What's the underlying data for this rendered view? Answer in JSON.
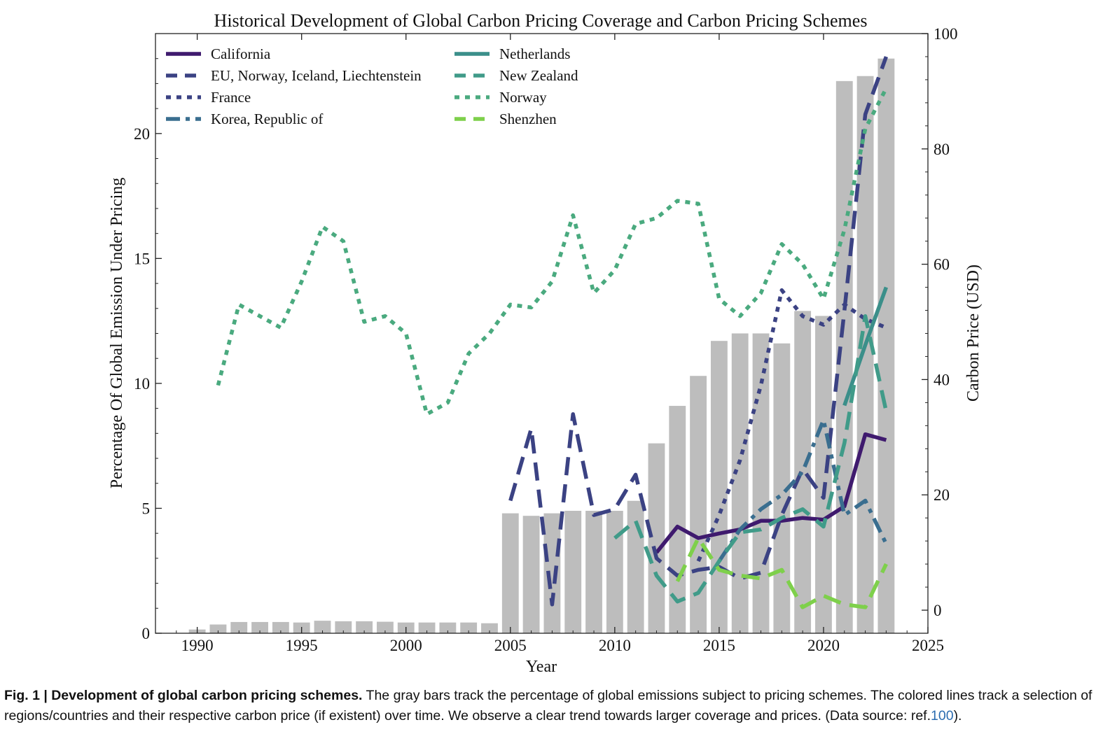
{
  "chart_data": {
    "type": "bar+line",
    "title": "Historical Development of Global Carbon Pricing Coverage and Carbon Pricing Schemes",
    "xlabel": "Year",
    "ylabel_left": "Percentage Of Global Emission Under Pricing",
    "ylabel_right": "Carbon Price (USD)",
    "xlim": [
      1988,
      2025
    ],
    "ylim_left": [
      0,
      24
    ],
    "ylim_right": [
      -4,
      100
    ],
    "x_ticks": [
      1990,
      1995,
      2000,
      2005,
      2010,
      2015,
      2020,
      2025
    ],
    "y_ticks_left": [
      0,
      5,
      10,
      15,
      20
    ],
    "y_ticks_right": [
      0,
      20,
      40,
      60,
      80,
      100
    ],
    "bars": {
      "axis": "left",
      "color": "#bdbdbd",
      "years": [
        1990,
        1991,
        1992,
        1993,
        1994,
        1995,
        1996,
        1997,
        1998,
        1999,
        2000,
        2001,
        2002,
        2003,
        2004,
        2005,
        2006,
        2007,
        2008,
        2009,
        2010,
        2011,
        2012,
        2013,
        2014,
        2015,
        2016,
        2017,
        2018,
        2019,
        2020,
        2021,
        2022,
        2023
      ],
      "values": [
        0.15,
        0.35,
        0.45,
        0.45,
        0.45,
        0.43,
        0.5,
        0.48,
        0.48,
        0.46,
        0.43,
        0.43,
        0.43,
        0.43,
        0.4,
        4.8,
        4.7,
        4.8,
        4.9,
        4.9,
        4.9,
        5.3,
        7.6,
        9.1,
        10.3,
        11.7,
        12.0,
        12.0,
        11.6,
        12.9,
        12.7,
        22.1,
        22.3,
        23.0
      ]
    },
    "series": [
      {
        "name": "California",
        "color": "#3f1a6e",
        "dash": "solid",
        "x": [
          2012,
          2013,
          2014,
          2015,
          2016,
          2017,
          2018,
          2019,
          2020,
          2021,
          2022,
          2023
        ],
        "y": [
          10,
          14.5,
          12.5,
          13.3,
          14,
          15.5,
          15.5,
          16,
          15.7,
          18,
          30.5,
          29.5
        ]
      },
      {
        "name": "EU, Norway, Iceland, Liechtenstein",
        "color": "#3b4283",
        "dash": "long",
        "x": [
          2005,
          2006,
          2007,
          2008,
          2009,
          2010,
          2011,
          2012,
          2013,
          2014,
          2015,
          2016,
          2017,
          2018,
          2019,
          2020,
          2021,
          2022,
          2023
        ],
        "y": [
          19,
          31.5,
          1,
          34,
          16.5,
          17.5,
          23.5,
          9,
          6,
          7,
          7.5,
          5.5,
          6.5,
          16.5,
          24.5,
          19.5,
          52,
          86,
          96
        ]
      },
      {
        "name": "France",
        "color": "#3b4283",
        "dash": "dot",
        "x": [
          2014,
          2015,
          2016,
          2017,
          2018,
          2019,
          2020,
          2021,
          2022,
          2023
        ],
        "y": [
          8.5,
          16.5,
          26,
          39,
          55.5,
          51,
          49.5,
          53,
          50.5,
          49
        ]
      },
      {
        "name": "Korea, Republic of",
        "color": "#3a6e8f",
        "dash": "dashdot",
        "x": [
          2015,
          2016,
          2017,
          2018,
          2019,
          2020,
          2021,
          2022,
          2023
        ],
        "y": [
          8.5,
          14,
          17.5,
          20,
          24,
          33,
          16.5,
          19,
          11.5
        ]
      },
      {
        "name": "Netherlands",
        "color": "#3b8f8a",
        "dash": "solid",
        "x": [
          2021,
          2022,
          2023
        ],
        "y": [
          35.5,
          46,
          56
        ]
      },
      {
        "name": "New Zealand",
        "color": "#409b89",
        "dash": "long",
        "x": [
          2010,
          2011,
          2012,
          2013,
          2014,
          2015,
          2016,
          2017,
          2018,
          2019,
          2020,
          2021,
          2022,
          2023
        ],
        "y": [
          12.5,
          15.5,
          6,
          1.5,
          3,
          8.5,
          13.5,
          14,
          16,
          17.5,
          14.5,
          29,
          51,
          34.5
        ]
      },
      {
        "name": "Norway",
        "color": "#4aaa7f",
        "dash": "dot",
        "x": [
          1991,
          1992,
          1993,
          1994,
          1995,
          1996,
          1997,
          1998,
          1999,
          2000,
          2001,
          2002,
          2003,
          2004,
          2005,
          2006,
          2007,
          2008,
          2009,
          2010,
          2011,
          2012,
          2013,
          2014,
          2015,
          2016,
          2017,
          2018,
          2019,
          2020,
          2021,
          2022,
          2023
        ],
        "y": [
          39,
          53,
          51,
          49,
          57,
          66.5,
          64,
          50,
          51,
          48,
          34,
          36,
          44.5,
          48,
          53,
          52.5,
          57,
          68.5,
          55,
          59,
          67,
          68,
          71,
          70.5,
          54,
          51,
          55,
          63.5,
          60,
          54,
          66,
          83.5,
          90.5
        ]
      },
      {
        "name": "Shenzhen",
        "color": "#7ed04b",
        "dash": "long",
        "x": [
          2013,
          2014,
          2015,
          2016,
          2017,
          2018,
          2019,
          2020,
          2021,
          2022,
          2023
        ],
        "y": [
          5,
          12.5,
          7,
          6,
          5.5,
          7,
          0.5,
          2.5,
          1,
          0.5,
          8
        ]
      }
    ],
    "legend": "upper-left, two columns"
  },
  "caption": {
    "lead": "Fig. 1 | Development of global carbon pricing schemes.",
    "text": " The gray bars track the percentage of global emissions subject to pricing schemes. The colored lines track a selection of regions/countries and their respective carbon price (if existent) over time. We observe a clear trend towards larger coverage and prices. (Data source: ref.",
    "ref": "100",
    "tail": ")."
  }
}
